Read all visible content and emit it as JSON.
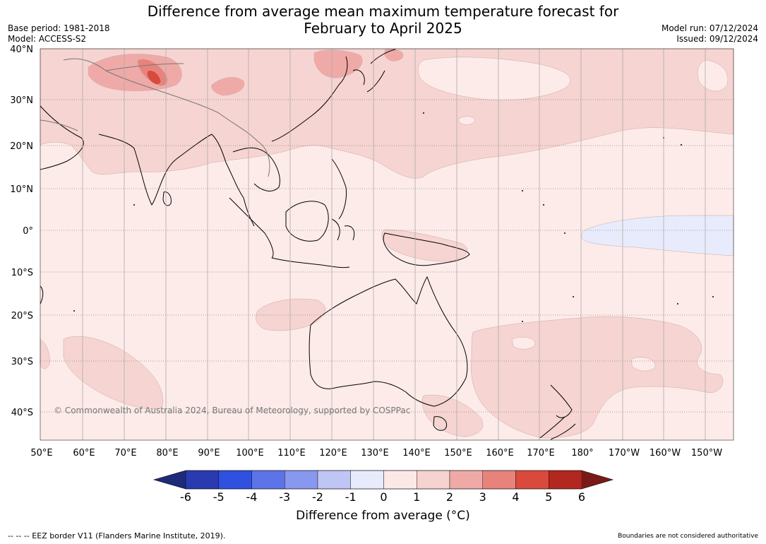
{
  "title": {
    "line1": "Difference from average mean maximum temperature forecast for",
    "line2": "February to April 2025"
  },
  "meta": {
    "base_period": "Base period: 1981-2018",
    "model": "Model: ACCESS-S2",
    "model_run": "Model run: 07/12/2024",
    "issued": "Issued: 09/12/2024"
  },
  "map": {
    "lat_labels": [
      "40°N",
      "30°N",
      "20°N",
      "10°N",
      "0°",
      "10°S",
      "20°S",
      "30°S",
      "40°S"
    ],
    "lon_labels": [
      "50°E",
      "60°E",
      "70°E",
      "80°E",
      "90°E",
      "100°E",
      "110°E",
      "120°E",
      "130°E",
      "140°E",
      "150°E",
      "160°E",
      "170°E",
      "180°",
      "170°W",
      "160°W",
      "150°W"
    ],
    "copyright": "© Commonwealth of Australia 2024, Bureau of Meteorology, supported by COSPPac"
  },
  "legend": {
    "title": "Difference from average (°C)",
    "ticks": [
      "-6",
      "-5",
      "-4",
      "-3",
      "-2",
      "-1",
      "0",
      "1",
      "2",
      "3",
      "4",
      "5",
      "6"
    ],
    "colors": [
      "#1f2a7a",
      "#2a3ab0",
      "#3050e0",
      "#5d74e8",
      "#8898ee",
      "#bfc6f5",
      "#e8ebfb",
      "#fce9e7",
      "#f6d3d0",
      "#efaaa7",
      "#e8837b",
      "#d94a3d",
      "#b2271f",
      "#7a1a16"
    ]
  },
  "footer": {
    "eez": "--  --  -- EEZ border V11 (Flanders Marine Institute, 2019).",
    "disclaimer": "Boundaries are not considered authoritative"
  }
}
